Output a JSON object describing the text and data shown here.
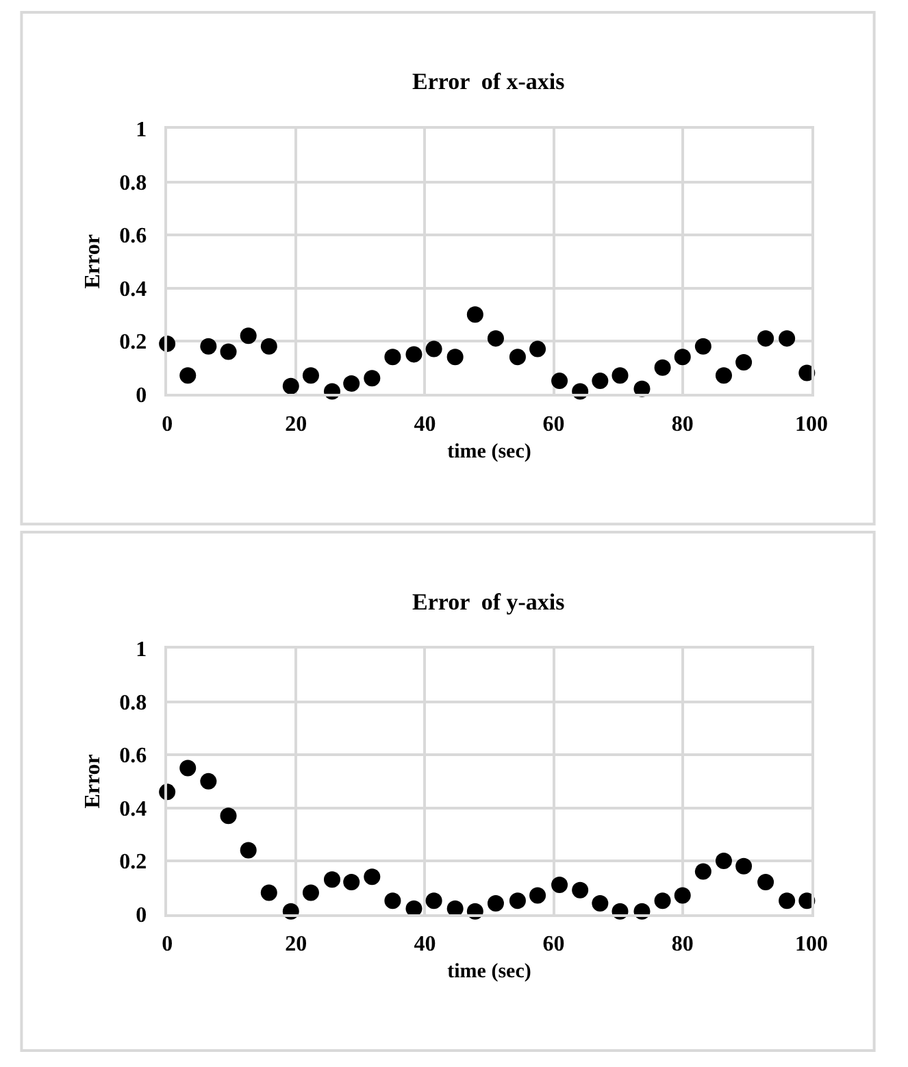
{
  "chart_data": [
    {
      "type": "scatter",
      "title": "Error  of x-axis",
      "xlabel": "time (sec)",
      "ylabel": "Error",
      "marker": "circle",
      "grid": true,
      "xlim": [
        0,
        100
      ],
      "xticks": [
        0,
        20,
        40,
        60,
        80,
        100
      ],
      "ylim": [
        0,
        1
      ],
      "yticks": [
        0,
        0.2,
        0.4,
        0.6,
        0.8,
        1
      ],
      "x": [
        0,
        3.2,
        6.4,
        9.5,
        12.6,
        15.8,
        19.2,
        22.3,
        25.6,
        28.6,
        31.8,
        35.0,
        38.3,
        41.4,
        44.7,
        47.8,
        51.0,
        54.4,
        57.5,
        60.9,
        64.1,
        67.2,
        70.3,
        73.7,
        76.9,
        80.0,
        83.2,
        86.4,
        89.5,
        92.9,
        96.2,
        99.3
      ],
      "series": [
        {
          "color": "#000000",
          "values": [
            0.19,
            0.07,
            0.18,
            0.16,
            0.22,
            0.18,
            0.03,
            0.07,
            0.01,
            0.04,
            0.06,
            0.14,
            0.15,
            0.17,
            0.14,
            0.3,
            0.21,
            0.14,
            0.17,
            0.05,
            0.01,
            0.05,
            0.07,
            0.02,
            0.1,
            0.14,
            0.18,
            0.07,
            0.12,
            0.21,
            0.21,
            0.08
          ]
        }
      ]
    },
    {
      "type": "scatter",
      "title": "Error  of y-axis",
      "xlabel": "time (sec)",
      "ylabel": "Error",
      "marker": "circle",
      "grid": true,
      "xlim": [
        0,
        100
      ],
      "xticks": [
        0,
        20,
        40,
        60,
        80,
        100
      ],
      "ylim": [
        0,
        1
      ],
      "yticks": [
        0,
        0.2,
        0.4,
        0.6,
        0.8,
        1
      ],
      "x": [
        0,
        3.2,
        6.4,
        9.5,
        12.6,
        15.8,
        19.2,
        22.3,
        25.6,
        28.6,
        31.8,
        35.0,
        38.3,
        41.4,
        44.7,
        47.8,
        51.0,
        54.4,
        57.5,
        60.9,
        64.1,
        67.2,
        70.3,
        73.7,
        76.9,
        80.0,
        83.2,
        86.4,
        89.5,
        92.9,
        96.2,
        99.3
      ],
      "series": [
        {
          "color": "#000000",
          "values": [
            0.46,
            0.55,
            0.5,
            0.37,
            0.24,
            0.08,
            0.01,
            0.08,
            0.13,
            0.12,
            0.14,
            0.05,
            0.02,
            0.05,
            0.02,
            0.01,
            0.04,
            0.05,
            0.07,
            0.11,
            0.09,
            0.04,
            0.01,
            0.01,
            0.05,
            0.07,
            0.16,
            0.2,
            0.18,
            0.12,
            0.05,
            0.05
          ]
        }
      ]
    }
  ]
}
